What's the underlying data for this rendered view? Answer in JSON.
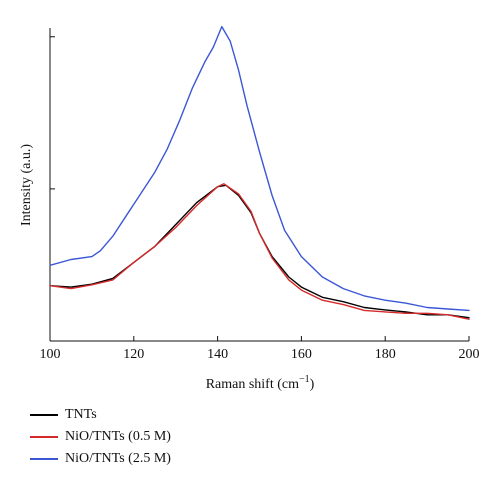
{
  "chart_data": {
    "type": "line",
    "xlabel": "Raman shift (cm",
    "xlabel_sup": "−1",
    "xlabel_close": ")",
    "ylabel": "Intensity (a.u.)",
    "xlim": [
      100,
      200
    ],
    "ylim": [
      0,
      100
    ],
    "x_ticks": [
      "100",
      "120",
      "140",
      "160",
      "180",
      "200"
    ],
    "y_ticks_labeled": false,
    "grid": false,
    "legend_position": "bottom-left",
    "series": [
      {
        "name": "TNTs",
        "color": "#000000",
        "points": [
          [
            100,
            19
          ],
          [
            105,
            18.5
          ],
          [
            110,
            19.5
          ],
          [
            115,
            21.5
          ],
          [
            120,
            27
          ],
          [
            125,
            32.5
          ],
          [
            130,
            40
          ],
          [
            135,
            47.5
          ],
          [
            140,
            53
          ],
          [
            142,
            53.5
          ],
          [
            145,
            50
          ],
          [
            148,
            44
          ],
          [
            150,
            37
          ],
          [
            153,
            29
          ],
          [
            157,
            22
          ],
          [
            160,
            18.5
          ],
          [
            165,
            15
          ],
          [
            170,
            13.5
          ],
          [
            175,
            11.5
          ],
          [
            180,
            10.7
          ],
          [
            185,
            10
          ],
          [
            190,
            9
          ],
          [
            195,
            9
          ],
          [
            200,
            8
          ]
        ]
      },
      {
        "name": "NiO/TNTs (0.5 M)",
        "color": "#d62a2a",
        "points": [
          [
            100,
            19
          ],
          [
            105,
            18
          ],
          [
            110,
            19.3
          ],
          [
            115,
            21
          ],
          [
            120,
            27
          ],
          [
            125,
            32.5
          ],
          [
            130,
            39
          ],
          [
            135,
            46.5
          ],
          [
            140,
            53
          ],
          [
            141.5,
            54
          ],
          [
            145,
            50.5
          ],
          [
            148,
            44.5
          ],
          [
            150,
            37
          ],
          [
            153,
            28.5
          ],
          [
            157,
            21
          ],
          [
            160,
            17.5
          ],
          [
            165,
            14
          ],
          [
            170,
            12.5
          ],
          [
            175,
            10.5
          ],
          [
            180,
            10
          ],
          [
            185,
            9.5
          ],
          [
            190,
            9.5
          ],
          [
            195,
            9
          ],
          [
            200,
            7.5
          ]
        ]
      },
      {
        "name": "NiO/TNTs (2.5 M)",
        "color": "#3b57d6",
        "points": [
          [
            100,
            26
          ],
          [
            105,
            28
          ],
          [
            110,
            29
          ],
          [
            112,
            31
          ],
          [
            115,
            36
          ],
          [
            120,
            47
          ],
          [
            125,
            58
          ],
          [
            128,
            66
          ],
          [
            131,
            76
          ],
          [
            134,
            87
          ],
          [
            137,
            96
          ],
          [
            139,
            101
          ],
          [
            141,
            108
          ],
          [
            143,
            103
          ],
          [
            145,
            93
          ],
          [
            147,
            81
          ],
          [
            150,
            65
          ],
          [
            153,
            50
          ],
          [
            156,
            38
          ],
          [
            160,
            29
          ],
          [
            165,
            22
          ],
          [
            170,
            18
          ],
          [
            175,
            15.5
          ],
          [
            180,
            14
          ],
          [
            185,
            13
          ],
          [
            190,
            11.5
          ],
          [
            195,
            11
          ],
          [
            200,
            10.5
          ]
        ]
      }
    ]
  }
}
